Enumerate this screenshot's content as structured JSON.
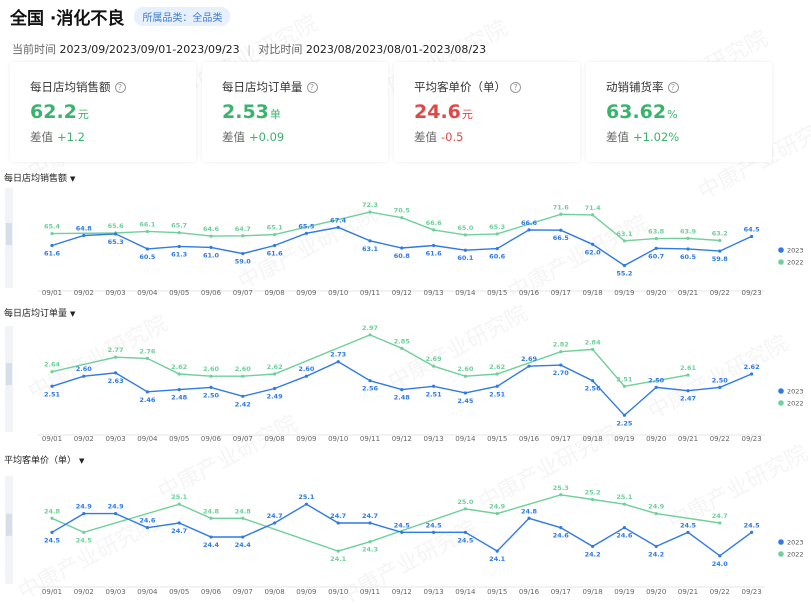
{
  "header": {
    "title": "全国 ·消化不良",
    "badge": "所属品类：全品类"
  },
  "period": {
    "current_label": "当前时间",
    "current_value": "2023/09/2023/09/01-2023/09/23",
    "compare_label": "对比时间",
    "compare_value": "2023/08/2023/08/01-2023/08/23"
  },
  "metrics": [
    {
      "title": "每日店均销售额",
      "value": "62.2",
      "unit": "元",
      "diff_label": "差值",
      "diff": "+1.2",
      "value_color": "#3bb36d",
      "diff_color": "#3bb36d"
    },
    {
      "title": "每日店均订单量",
      "value": "2.53",
      "unit": "单",
      "diff_label": "差值",
      "diff": "+0.09",
      "value_color": "#3bb36d",
      "diff_color": "#3bb36d"
    },
    {
      "title": "平均客单价（单）",
      "value": "24.6",
      "unit": "元",
      "diff_label": "差值",
      "diff": "-0.5",
      "value_color": "#e04848",
      "diff_color": "#e04848"
    },
    {
      "title": "动销铺货率",
      "value": "63.62",
      "unit": "%",
      "diff_label": "差值",
      "diff": "+1.02%",
      "value_color": "#3bb36d",
      "diff_color": "#3bb36d"
    }
  ],
  "watermark_text": "中康产业研究院",
  "colors": {
    "series_2023": "#2f7ae5",
    "series_2022": "#6fd09b"
  },
  "chart_data": [
    {
      "type": "line",
      "title": "每日店均销售额",
      "categories": [
        "09/01",
        "09/02",
        "09/03",
        "09/04",
        "09/05",
        "09/06",
        "09/07",
        "09/08",
        "09/09",
        "09/10",
        "09/11",
        "09/12",
        "09/13",
        "09/14",
        "09/15",
        "09/16",
        "09/17",
        "09/18",
        "09/19",
        "09/20",
        "09/21",
        "09/22",
        "09/23"
      ],
      "series": [
        {
          "name": "2023",
          "values": [
            61.6,
            64.8,
            65.3,
            60.5,
            61.3,
            61.0,
            59.0,
            61.6,
            65.5,
            67.4,
            63.1,
            60.8,
            61.6,
            60.1,
            60.6,
            66.6,
            66.5,
            62.0,
            55.2,
            60.7,
            60.5,
            59.8,
            64.5
          ]
        },
        {
          "name": "2022",
          "values": [
            65.4,
            null,
            65.6,
            66.1,
            65.7,
            64.6,
            64.7,
            65.1,
            null,
            null,
            72.3,
            70.5,
            66.6,
            65.0,
            65.3,
            null,
            71.6,
            71.4,
            63.1,
            63.8,
            63.9,
            63.2,
            null
          ]
        }
      ],
      "ylim": [
        48,
        80
      ],
      "legend": "right"
    },
    {
      "type": "line",
      "title": "每日店均订单量",
      "categories": [
        "09/01",
        "09/02",
        "09/03",
        "09/04",
        "09/05",
        "09/06",
        "09/07",
        "09/08",
        "09/09",
        "09/10",
        "09/11",
        "09/12",
        "09/13",
        "09/14",
        "09/15",
        "09/16",
        "09/17",
        "09/18",
        "09/19",
        "09/20",
        "09/21",
        "09/22",
        "09/23"
      ],
      "series": [
        {
          "name": "2023",
          "values": [
            2.51,
            2.6,
            2.63,
            2.46,
            2.48,
            2.5,
            2.42,
            2.49,
            2.6,
            2.73,
            2.56,
            2.48,
            2.51,
            2.45,
            2.51,
            2.69,
            2.7,
            2.56,
            2.25,
            2.5,
            2.47,
            2.5,
            2.62
          ]
        },
        {
          "name": "2022",
          "values": [
            2.64,
            null,
            2.77,
            2.76,
            2.62,
            2.6,
            2.6,
            2.62,
            null,
            null,
            2.97,
            2.85,
            2.69,
            2.6,
            2.62,
            null,
            2.82,
            2.84,
            2.51,
            null,
            2.61,
            null,
            null
          ]
        }
      ],
      "ylim": [
        2.1,
        3.05
      ],
      "legend": "right"
    },
    {
      "type": "line",
      "title": "平均客单价（单）",
      "categories": [
        "09/01",
        "09/02",
        "09/03",
        "09/04",
        "09/05",
        "09/06",
        "09/07",
        "09/08",
        "09/09",
        "09/10",
        "09/11",
        "09/12",
        "09/13",
        "09/14",
        "09/15",
        "09/16",
        "09/17",
        "09/18",
        "09/19",
        "09/20",
        "09/21",
        "09/22",
        "09/23"
      ],
      "series": [
        {
          "name": "2023",
          "values": [
            24.5,
            24.9,
            24.9,
            24.6,
            24.7,
            24.4,
            24.4,
            24.7,
            25.1,
            24.7,
            24.7,
            24.5,
            24.5,
            24.5,
            24.1,
            24.8,
            24.6,
            24.2,
            24.6,
            24.2,
            24.5,
            24.0,
            24.5
          ]
        },
        {
          "name": "2022",
          "values": [
            24.8,
            24.5,
            null,
            null,
            25.1,
            24.8,
            24.8,
            null,
            null,
            24.1,
            24.3,
            null,
            null,
            25.0,
            24.9,
            null,
            25.3,
            25.2,
            25.1,
            24.9,
            null,
            24.7,
            null
          ]
        }
      ],
      "ylim": [
        23.4,
        25.7
      ],
      "legend": "right"
    }
  ]
}
